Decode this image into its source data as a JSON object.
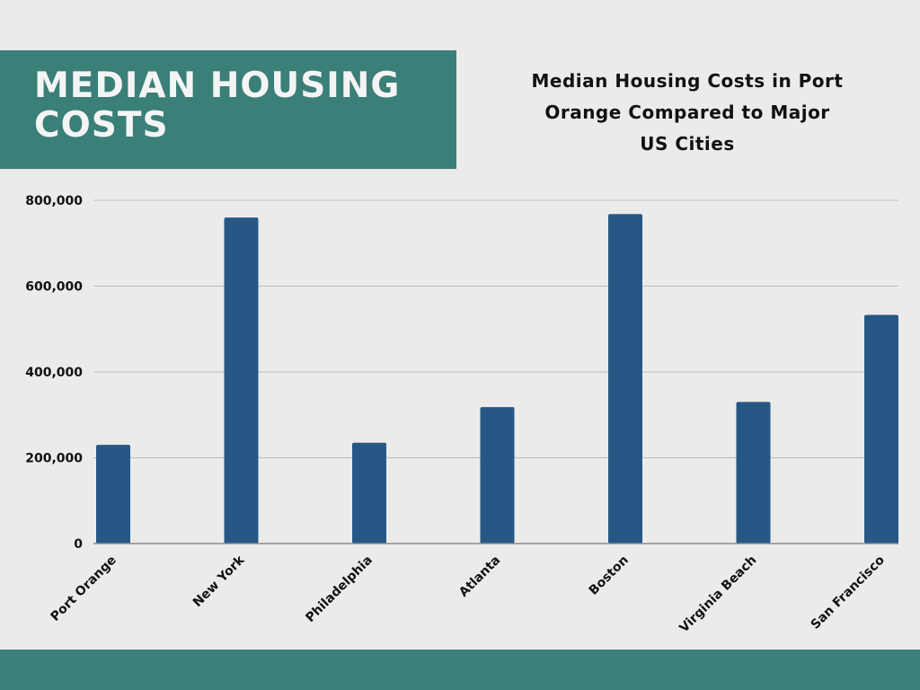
{
  "banner": {
    "title": "MEDIAN HOUSING COSTS"
  },
  "colors": {
    "banner_background": "#3a7f78",
    "page_background": "#ebebeb",
    "bar_fill": "#275885",
    "grid_line": "#bdbdbd",
    "axis_line": "#8a8a8a"
  },
  "chart_data": {
    "type": "bar",
    "title": "Median Housing Costs in Port Orange Compared to Major US Cities",
    "xlabel": "",
    "ylabel": "",
    "categories": [
      "Port Orange",
      "New York",
      "Philadelphia",
      "Atlanta",
      "Boston",
      "Virginia Beach",
      "San Francisco"
    ],
    "values": [
      230000,
      760000,
      235000,
      318000,
      768000,
      330000,
      533000
    ],
    "ylim": [
      0,
      800000
    ],
    "yticks": [
      0,
      200000,
      400000,
      600000,
      800000
    ],
    "ytick_labels": [
      "0",
      "200,000",
      "400,000",
      "600,000",
      "800,000"
    ],
    "grid": true,
    "legend": "none"
  }
}
